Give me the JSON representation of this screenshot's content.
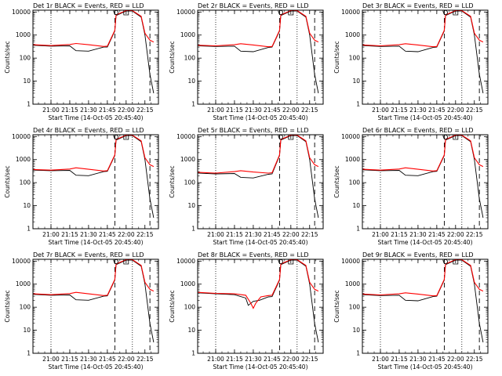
{
  "chart_data": [
    {
      "type": "line",
      "title": "Det 1r BLACK = Events, RED = LLD",
      "xlabel": "Start Time (14-Oct-05 20:45:40)",
      "ylabel": "Counts/sec",
      "x_ticks": [
        "21:00",
        "21:15",
        "21:30",
        "21:45",
        "22:00",
        "22:15"
      ],
      "y_ticks": [
        "1",
        "10",
        "100",
        "1000",
        "10000"
      ],
      "xlim_minutes": [
        20.76,
        22.43
      ],
      "ylim": [
        1,
        12000
      ],
      "yscale": "log",
      "dotted_lines": [
        "21:00",
        "22:05"
      ],
      "dashed_lines": [
        "21:51",
        "22:19"
      ],
      "dip": "none",
      "series": [
        {
          "color": "#000000",
          "x": [
            "20:46",
            "21:00",
            "21:15",
            "21:20",
            "21:30",
            "21:42",
            "21:45",
            "21:51",
            "21:52",
            "22:00",
            "22:05",
            "22:12",
            "22:15",
            "22:19",
            "22:22"
          ],
          "y": [
            360,
            330,
            340,
            210,
            200,
            300,
            300,
            1500,
            7000,
            11000,
            11000,
            6000,
            1000,
            20,
            3
          ]
        },
        {
          "color": "#ff0000",
          "x": [
            "20:46",
            "21:00",
            "21:15",
            "21:20",
            "21:30",
            "21:42",
            "21:45",
            "21:51",
            "21:52",
            "22:00",
            "22:05",
            "22:12",
            "22:15",
            "22:19",
            "22:22"
          ],
          "y": [
            380,
            350,
            390,
            430,
            380,
            320,
            330,
            1600,
            7500,
            11500,
            11500,
            6500,
            1200,
            600,
            500
          ]
        }
      ]
    },
    {
      "type": "line",
      "title": "Det 2r BLACK = Events, RED = LLD",
      "xlabel": "Start Time (14-Oct-05 20:45:40)",
      "ylabel": "Counts/sec",
      "x_ticks": [
        "21:00",
        "21:15",
        "21:30",
        "21:45",
        "22:00",
        "22:15"
      ],
      "y_ticks": [
        "1",
        "10",
        "100",
        "1000",
        "10000"
      ],
      "xlim_minutes": [
        20.76,
        22.43
      ],
      "ylim": [
        1,
        12000
      ],
      "yscale": "log",
      "dotted_lines": [
        "21:00",
        "22:05"
      ],
      "dashed_lines": [
        "21:51",
        "22:19"
      ],
      "dip": "none",
      "series": [
        {
          "color": "#000000",
          "x": [
            "20:46",
            "21:00",
            "21:15",
            "21:20",
            "21:30",
            "21:42",
            "21:45",
            "21:51",
            "21:52",
            "22:00",
            "22:05",
            "22:12",
            "22:15",
            "22:19",
            "22:22"
          ],
          "y": [
            340,
            320,
            330,
            200,
            190,
            290,
            300,
            1500,
            7000,
            11000,
            11000,
            6000,
            1000,
            20,
            3
          ]
        },
        {
          "color": "#ff0000",
          "x": [
            "20:46",
            "21:00",
            "21:15",
            "21:20",
            "21:30",
            "21:42",
            "21:45",
            "21:51",
            "21:52",
            "22:00",
            "22:05",
            "22:12",
            "22:15",
            "22:19",
            "22:22"
          ],
          "y": [
            360,
            340,
            380,
            420,
            370,
            310,
            320,
            1600,
            7500,
            11500,
            11500,
            6500,
            1200,
            600,
            500
          ]
        }
      ]
    },
    {
      "type": "line",
      "title": "Det 3r BLACK = Events, RED = LLD",
      "xlabel": "Start Time (14-Oct-05 20:45:40)",
      "ylabel": "Counts/sec",
      "x_ticks": [
        "21:00",
        "21:15",
        "21:30",
        "21:45",
        "22:00",
        "22:15"
      ],
      "y_ticks": [
        "1",
        "10",
        "100",
        "1000",
        "10000"
      ],
      "xlim_minutes": [
        20.76,
        22.43
      ],
      "ylim": [
        1,
        12000
      ],
      "yscale": "log",
      "dotted_lines": [
        "21:00",
        "22:05"
      ],
      "dashed_lines": [
        "21:51",
        "22:19"
      ],
      "dip": "none",
      "series": [
        {
          "color": "#000000",
          "x": [
            "20:46",
            "21:00",
            "21:15",
            "21:20",
            "21:30",
            "21:42",
            "21:45",
            "21:51",
            "21:52",
            "22:00",
            "22:05",
            "22:12",
            "22:15",
            "22:19",
            "22:22"
          ],
          "y": [
            350,
            320,
            330,
            200,
            190,
            290,
            300,
            1500,
            7000,
            11000,
            11000,
            6000,
            1000,
            20,
            3
          ]
        },
        {
          "color": "#ff0000",
          "x": [
            "20:46",
            "21:00",
            "21:15",
            "21:20",
            "21:30",
            "21:42",
            "21:45",
            "21:51",
            "21:52",
            "22:00",
            "22:05",
            "22:12",
            "22:15",
            "22:19",
            "22:22"
          ],
          "y": [
            370,
            340,
            380,
            420,
            370,
            310,
            320,
            1600,
            7500,
            11500,
            11500,
            6500,
            1200,
            600,
            500
          ]
        }
      ]
    },
    {
      "type": "line",
      "title": "Det 4r BLACK = Events, RED = LLD",
      "xlabel": "Start Time (14-Oct-05 20:45:40)",
      "ylabel": "Counts/sec",
      "x_ticks": [
        "21:00",
        "21:15",
        "21:30",
        "21:45",
        "22:00",
        "22:15"
      ],
      "y_ticks": [
        "1",
        "10",
        "100",
        "1000",
        "10000"
      ],
      "xlim_minutes": [
        20.76,
        22.43
      ],
      "ylim": [
        1,
        12000
      ],
      "yscale": "log",
      "dotted_lines": [
        "21:00",
        "22:05"
      ],
      "dashed_lines": [
        "21:51",
        "22:19"
      ],
      "dip": "none",
      "series": [
        {
          "color": "#000000",
          "x": [
            "20:46",
            "21:00",
            "21:15",
            "21:20",
            "21:30",
            "21:42",
            "21:45",
            "21:51",
            "21:52",
            "22:00",
            "22:05",
            "22:12",
            "22:15",
            "22:19",
            "22:22"
          ],
          "y": [
            350,
            330,
            340,
            210,
            200,
            300,
            310,
            1500,
            7000,
            11000,
            11000,
            6000,
            1000,
            20,
            3
          ]
        },
        {
          "color": "#ff0000",
          "x": [
            "20:46",
            "21:00",
            "21:15",
            "21:20",
            "21:30",
            "21:42",
            "21:45",
            "21:51",
            "21:52",
            "22:00",
            "22:05",
            "22:12",
            "22:15",
            "22:19",
            "22:22"
          ],
          "y": [
            370,
            350,
            390,
            440,
            380,
            320,
            330,
            1600,
            7500,
            11500,
            11500,
            6500,
            1200,
            600,
            500
          ]
        }
      ]
    },
    {
      "type": "line",
      "title": "Det 5r BLACK = Events, RED = LLD",
      "xlabel": "Start Time (14-Oct-05 20:45:40)",
      "ylabel": "Counts/sec",
      "x_ticks": [
        "21:00",
        "21:15",
        "21:30",
        "21:45",
        "22:00",
        "22:15"
      ],
      "y_ticks": [
        "1",
        "10",
        "100",
        "1000",
        "10000"
      ],
      "xlim_minutes": [
        20.76,
        22.43
      ],
      "ylim": [
        1,
        12000
      ],
      "yscale": "log",
      "dotted_lines": [
        "21:00",
        "22:05"
      ],
      "dashed_lines": [
        "21:51",
        "22:19"
      ],
      "dip": "none",
      "series": [
        {
          "color": "#000000",
          "x": [
            "20:46",
            "21:00",
            "21:15",
            "21:20",
            "21:30",
            "21:42",
            "21:45",
            "21:51",
            "21:52",
            "22:00",
            "22:05",
            "22:12",
            "22:15",
            "22:19",
            "22:22"
          ],
          "y": [
            260,
            240,
            250,
            170,
            160,
            230,
            240,
            1500,
            7000,
            11000,
            11000,
            6000,
            1000,
            20,
            3
          ]
        },
        {
          "color": "#ff0000",
          "x": [
            "20:46",
            "21:00",
            "21:15",
            "21:20",
            "21:30",
            "21:42",
            "21:45",
            "21:51",
            "21:52",
            "22:00",
            "22:05",
            "22:12",
            "22:15",
            "22:19",
            "22:22"
          ],
          "y": [
            280,
            260,
            300,
            330,
            290,
            260,
            270,
            1600,
            7500,
            11500,
            11500,
            6500,
            1200,
            600,
            500
          ]
        }
      ]
    },
    {
      "type": "line",
      "title": "Det 6r BLACK = Events, RED = LLD",
      "xlabel": "Start Time (14-Oct-05 20:45:40)",
      "ylabel": "Counts/sec",
      "x_ticks": [
        "21:00",
        "21:15",
        "21:30",
        "21:45",
        "22:00",
        "22:15"
      ],
      "y_ticks": [
        "1",
        "10",
        "100",
        "1000",
        "10000"
      ],
      "xlim_minutes": [
        20.76,
        22.43
      ],
      "ylim": [
        1,
        12000
      ],
      "yscale": "log",
      "dotted_lines": [
        "21:00",
        "22:05"
      ],
      "dashed_lines": [
        "21:51",
        "22:19"
      ],
      "dip": "none",
      "series": [
        {
          "color": "#000000",
          "x": [
            "20:46",
            "21:00",
            "21:15",
            "21:20",
            "21:30",
            "21:42",
            "21:45",
            "21:51",
            "21:52",
            "22:00",
            "22:05",
            "22:12",
            "22:15",
            "22:19",
            "22:22"
          ],
          "y": [
            360,
            330,
            340,
            210,
            200,
            300,
            310,
            1500,
            7000,
            11000,
            11000,
            6000,
            1000,
            20,
            3
          ]
        },
        {
          "color": "#ff0000",
          "x": [
            "20:46",
            "21:00",
            "21:15",
            "21:20",
            "21:30",
            "21:42",
            "21:45",
            "21:51",
            "21:52",
            "22:00",
            "22:05",
            "22:12",
            "22:15",
            "22:19",
            "22:22"
          ],
          "y": [
            380,
            350,
            390,
            440,
            380,
            320,
            330,
            1600,
            7500,
            11500,
            11500,
            6500,
            1200,
            600,
            500
          ]
        }
      ]
    },
    {
      "type": "line",
      "title": "Det 7r BLACK = Events, RED = LLD",
      "xlabel": "Start Time (14-Oct-05 20:45:40)",
      "ylabel": "Counts/sec",
      "x_ticks": [
        "21:00",
        "21:15",
        "21:30",
        "21:45",
        "22:00",
        "22:15"
      ],
      "y_ticks": [
        "1",
        "10",
        "100",
        "1000",
        "10000"
      ],
      "xlim_minutes": [
        20.76,
        22.43
      ],
      "ylim": [
        1,
        12000
      ],
      "yscale": "log",
      "dotted_lines": [
        "21:00",
        "22:05"
      ],
      "dashed_lines": [
        "21:51",
        "22:19"
      ],
      "dip": "none",
      "series": [
        {
          "color": "#000000",
          "x": [
            "20:46",
            "21:00",
            "21:15",
            "21:20",
            "21:30",
            "21:42",
            "21:45",
            "21:51",
            "21:52",
            "22:00",
            "22:05",
            "22:12",
            "22:15",
            "22:19",
            "22:22"
          ],
          "y": [
            360,
            330,
            340,
            210,
            200,
            300,
            310,
            1500,
            7000,
            11000,
            11000,
            6000,
            1000,
            20,
            3
          ]
        },
        {
          "color": "#ff0000",
          "x": [
            "20:46",
            "21:00",
            "21:15",
            "21:20",
            "21:30",
            "21:42",
            "21:45",
            "21:51",
            "21:52",
            "22:00",
            "22:05",
            "22:12",
            "22:15",
            "22:19",
            "22:22"
          ],
          "y": [
            380,
            350,
            390,
            440,
            380,
            320,
            330,
            1600,
            7500,
            11500,
            11500,
            6500,
            1200,
            600,
            500
          ]
        }
      ]
    },
    {
      "type": "line",
      "title": "Det 8r BLACK = Events, RED = LLD",
      "xlabel": "Start Time (14-Oct-05 20:45:40)",
      "ylabel": "Counts/sec",
      "x_ticks": [
        "21:00",
        "21:15",
        "21:30",
        "21:45",
        "22:00",
        "22:15"
      ],
      "y_ticks": [
        "1",
        "10",
        "100",
        "1000",
        "10000"
      ],
      "xlim_minutes": [
        20.76,
        22.43
      ],
      "ylim": [
        1,
        12000
      ],
      "yscale": "log",
      "dotted_lines": [
        "21:00",
        "22:05"
      ],
      "dashed_lines": [
        "21:51",
        "22:19"
      ],
      "dip": "red",
      "series": [
        {
          "color": "#000000",
          "x": [
            "20:46",
            "21:00",
            "21:15",
            "21:24",
            "21:26",
            "21:30",
            "21:35",
            "21:42",
            "21:45",
            "21:51",
            "21:52",
            "22:00",
            "22:05",
            "22:12",
            "22:15",
            "22:19",
            "22:22"
          ],
          "y": [
            420,
            380,
            350,
            250,
            120,
            180,
            200,
            280,
            290,
            1500,
            7000,
            11000,
            11000,
            6000,
            1000,
            20,
            3
          ]
        },
        {
          "color": "#ff0000",
          "x": [
            "20:46",
            "21:00",
            "21:15",
            "21:24",
            "21:28",
            "21:30",
            "21:32",
            "21:36",
            "21:42",
            "21:45",
            "21:51",
            "21:52",
            "22:00",
            "22:05",
            "22:12",
            "22:15",
            "22:19",
            "22:22"
          ],
          "y": [
            440,
            400,
            380,
            330,
            150,
            90,
            150,
            280,
            320,
            330,
            1600,
            7500,
            11500,
            11500,
            6500,
            1200,
            600,
            500
          ]
        }
      ]
    },
    {
      "type": "line",
      "title": "Det 9r BLACK = Events, RED = LLD",
      "xlabel": "Start Time (14-Oct-05 20:45:40)",
      "ylabel": "Counts/sec",
      "x_ticks": [
        "21:00",
        "21:15",
        "21:30",
        "21:45",
        "22:00",
        "22:15"
      ],
      "y_ticks": [
        "1",
        "10",
        "100",
        "1000",
        "10000"
      ],
      "xlim_minutes": [
        20.76,
        22.43
      ],
      "ylim": [
        1,
        12000
      ],
      "yscale": "log",
      "dotted_lines": [
        "21:00",
        "22:05"
      ],
      "dashed_lines": [
        "21:51",
        "22:19"
      ],
      "dip": "none",
      "series": [
        {
          "color": "#000000",
          "x": [
            "20:46",
            "21:00",
            "21:15",
            "21:20",
            "21:30",
            "21:42",
            "21:45",
            "21:51",
            "21:52",
            "22:00",
            "22:05",
            "22:12",
            "22:15",
            "22:19",
            "22:22"
          ],
          "y": [
            350,
            320,
            330,
            200,
            190,
            290,
            300,
            1500,
            7000,
            11000,
            11000,
            6000,
            1000,
            20,
            3
          ]
        },
        {
          "color": "#ff0000",
          "x": [
            "20:46",
            "21:00",
            "21:15",
            "21:20",
            "21:30",
            "21:42",
            "21:45",
            "21:51",
            "21:52",
            "22:00",
            "22:05",
            "22:12",
            "22:15",
            "22:19",
            "22:22"
          ],
          "y": [
            370,
            340,
            380,
            420,
            370,
            310,
            320,
            1600,
            7500,
            11500,
            11500,
            6500,
            1200,
            600,
            500
          ]
        }
      ]
    }
  ]
}
